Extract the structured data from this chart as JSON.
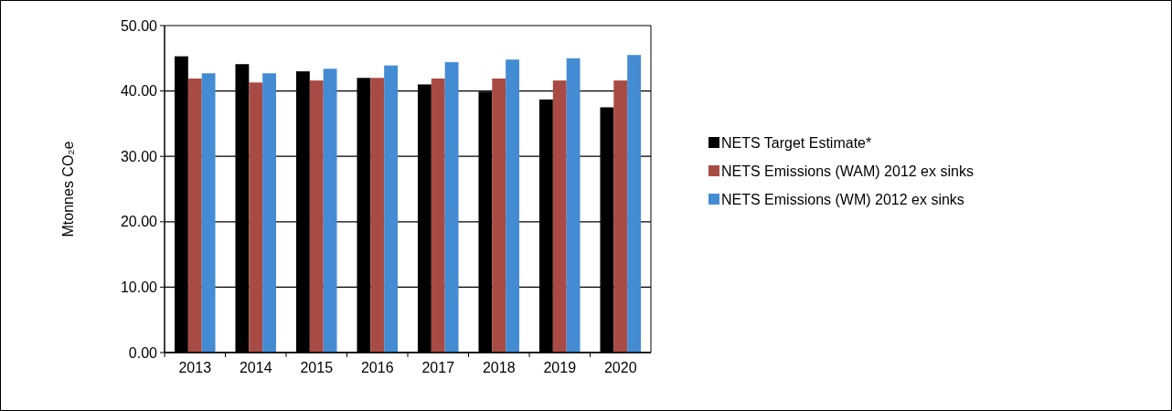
{
  "chart_data": {
    "type": "bar",
    "ylabel": "Mtonnes CO₂e",
    "categories": [
      "2013",
      "2014",
      "2015",
      "2016",
      "2017",
      "2018",
      "2019",
      "2020"
    ],
    "series": [
      {
        "name": "NETS Target Estimate*",
        "color": "#000000",
        "values": [
          45.3,
          44.1,
          43.0,
          42.0,
          41.0,
          39.9,
          38.7,
          37.5
        ]
      },
      {
        "name": "NETS Emissions (WAM) 2012 ex sinks",
        "color": "#a84b44",
        "values": [
          41.9,
          41.3,
          41.6,
          42.0,
          41.9,
          41.9,
          41.6,
          41.6
        ]
      },
      {
        "name": "NETS Emissions (WM) 2012 ex sinks",
        "color": "#438cd4",
        "values": [
          42.7,
          42.7,
          43.4,
          43.9,
          44.4,
          44.8,
          45.0,
          45.5
        ]
      }
    ],
    "ylim": [
      0,
      50
    ],
    "yticks": [
      {
        "value": 0,
        "label": "0.00"
      },
      {
        "value": 10,
        "label": "10.00"
      },
      {
        "value": 20,
        "label": "20.00"
      },
      {
        "value": 30,
        "label": "30.00"
      },
      {
        "value": 40,
        "label": "40.00"
      },
      {
        "value": 50,
        "label": "50.00"
      }
    ],
    "grid": "y",
    "legend": "right"
  }
}
